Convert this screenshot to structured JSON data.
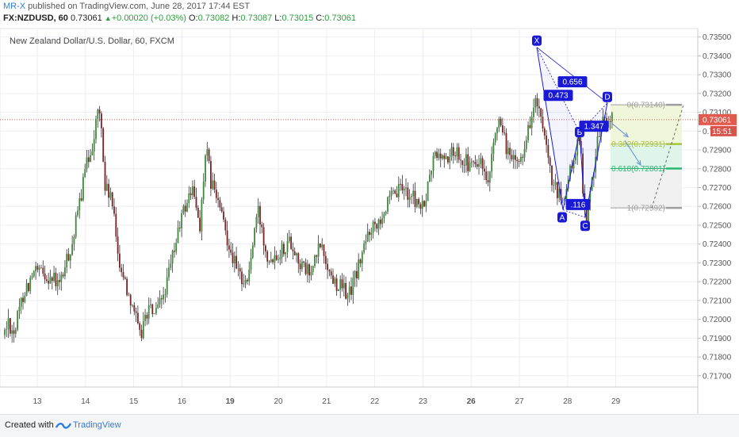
{
  "header": {
    "user": "MR-X",
    "published": " published on TradingView.com, June 28, 2017 17:44 EST",
    "symbol": "FX:NZDUSD, 60",
    "last": "0.73061",
    "change": "+0.00020 (+0.03%)",
    "o_label": "O:",
    "o": "0.73082",
    "h_label": "H:",
    "h": "0.73087",
    "l_label": "L:",
    "l": "0.73015",
    "c_label": "C:",
    "c": "0.73061"
  },
  "footer": {
    "created": "Created with",
    "brand": "TradingView"
  },
  "colors": {
    "up": "#3c8a3a",
    "down": "#7a2326",
    "wick": "#333333",
    "pattern": "#1a1ad6",
    "price_line": "#e05a4e",
    "fib_zero": "#9e9e9e",
    "fib_382": "#a9c23f",
    "fib_618": "#26b873",
    "fib_one": "#9e9e9e",
    "arrow": "#6a8ed8"
  },
  "chart_data": {
    "type": "candlestick",
    "title": "New Zealand Dollar/U.S. Dollar, 60, FXCM",
    "ylim": [
      0.7164,
      0.73545
    ],
    "y_ticks": [
      "0.73500",
      "0.73400",
      "0.73300",
      "0.73200",
      "0.73100",
      "0.73000",
      "0.72900",
      "0.72800",
      "0.72700",
      "0.72600",
      "0.72500",
      "0.72400",
      "0.72300",
      "0.72200",
      "0.72100",
      "0.72000",
      "0.71900",
      "0.71800",
      "0.71700"
    ],
    "x_ticks": [
      {
        "label": "13",
        "bold": false
      },
      {
        "label": "14",
        "bold": false
      },
      {
        "label": "15",
        "bold": false
      },
      {
        "label": "16",
        "bold": false
      },
      {
        "label": "19",
        "bold": true
      },
      {
        "label": "20",
        "bold": false
      },
      {
        "label": "21",
        "bold": false
      },
      {
        "label": "22",
        "bold": false
      },
      {
        "label": "23",
        "bold": false
      },
      {
        "label": "26",
        "bold": true
      },
      {
        "label": "27",
        "bold": false
      },
      {
        "label": "28",
        "bold": false
      },
      {
        "label": "29",
        "bold": false
      }
    ],
    "anchors": [
      [
        0,
        0.7184
      ],
      [
        10,
        0.7199
      ],
      [
        18,
        0.7193
      ],
      [
        30,
        0.7215
      ],
      [
        45,
        0.7225
      ],
      [
        62,
        0.7223
      ],
      [
        75,
        0.7218
      ],
      [
        92,
        0.7242
      ],
      [
        108,
        0.728
      ],
      [
        118,
        0.7296
      ],
      [
        124,
        0.7312
      ],
      [
        128,
        0.7302
      ],
      [
        132,
        0.727
      ],
      [
        140,
        0.7265
      ],
      [
        150,
        0.7232
      ],
      [
        160,
        0.7216
      ],
      [
        168,
        0.7208
      ],
      [
        176,
        0.719
      ],
      [
        186,
        0.7205
      ],
      [
        198,
        0.7203
      ],
      [
        210,
        0.7218
      ],
      [
        228,
        0.7253
      ],
      [
        242,
        0.727
      ],
      [
        252,
        0.725
      ],
      [
        260,
        0.729
      ],
      [
        266,
        0.7273
      ],
      [
        275,
        0.7262
      ],
      [
        285,
        0.7246
      ],
      [
        300,
        0.7224
      ],
      [
        312,
        0.722
      ],
      [
        325,
        0.7258
      ],
      [
        338,
        0.7233
      ],
      [
        352,
        0.7236
      ],
      [
        366,
        0.7242
      ],
      [
        380,
        0.7228
      ],
      [
        392,
        0.7224
      ],
      [
        404,
        0.724
      ],
      [
        418,
        0.7222
      ],
      [
        428,
        0.7218
      ],
      [
        440,
        0.7213
      ],
      [
        450,
        0.7225
      ],
      [
        466,
        0.7248
      ],
      [
        480,
        0.7255
      ],
      [
        494,
        0.7264
      ],
      [
        508,
        0.727
      ],
      [
        522,
        0.7264
      ],
      [
        534,
        0.7258
      ],
      [
        548,
        0.7288
      ],
      [
        562,
        0.7285
      ],
      [
        576,
        0.729
      ],
      [
        592,
        0.7281
      ],
      [
        606,
        0.7283
      ],
      [
        616,
        0.7268
      ],
      [
        626,
        0.7306
      ],
      [
        636,
        0.7295
      ],
      [
        646,
        0.7283
      ],
      [
        656,
        0.7284
      ],
      [
        668,
        0.7304
      ],
      [
        676,
        0.7317
      ],
      [
        686,
        0.7296
      ],
      [
        696,
        0.7272
      ],
      [
        704,
        0.7266
      ],
      [
        710,
        0.7262
      ],
      [
        718,
        0.7276
      ],
      [
        726,
        0.729
      ],
      [
        732,
        0.7293
      ],
      [
        736,
        0.7265
      ],
      [
        740,
        0.7255
      ],
      [
        746,
        0.727
      ],
      [
        752,
        0.7294
      ],
      [
        760,
        0.7305
      ],
      [
        768,
        0.7307
      ],
      [
        773,
        0.7306
      ]
    ],
    "harmonic_pattern": {
      "points": [
        {
          "label": "X",
          "t": 677,
          "price": 0.73445
        },
        {
          "label": "A",
          "t": 710,
          "price": 0.72582
        },
        {
          "label": "B",
          "t": 731,
          "price": 0.72993
        },
        {
          "label": "C",
          "t": 738,
          "price": 0.72541
        },
        {
          "label": "D",
          "t": 766,
          "price": 0.7315
        }
      ],
      "ratios": [
        {
          "label": "0.473",
          "t": 704,
          "price": 0.7319
        },
        {
          "label": "0.656",
          "t": 722,
          "price": 0.73262
        },
        {
          "label": "1.347",
          "t": 749,
          "price": 0.73026
        },
        {
          "label": ".116",
          "t": 729,
          "price": 0.7261
        }
      ]
    },
    "fib_levels": [
      {
        "label": "0(0.73140)",
        "value": 0.7314,
        "color": "#9e9e9e"
      },
      {
        "label": "0.382(0.72931)",
        "value": 0.72931,
        "color": "#a9c23f"
      },
      {
        "label": "0.618(0.72801)",
        "value": 0.72801,
        "color": "#26b873"
      },
      {
        "label": "1(0.72592)",
        "value": 0.72592,
        "color": "#9e9e9e"
      }
    ],
    "current_price": {
      "label": "0.73061",
      "value": 0.73061,
      "countdown": "15:51"
    }
  }
}
